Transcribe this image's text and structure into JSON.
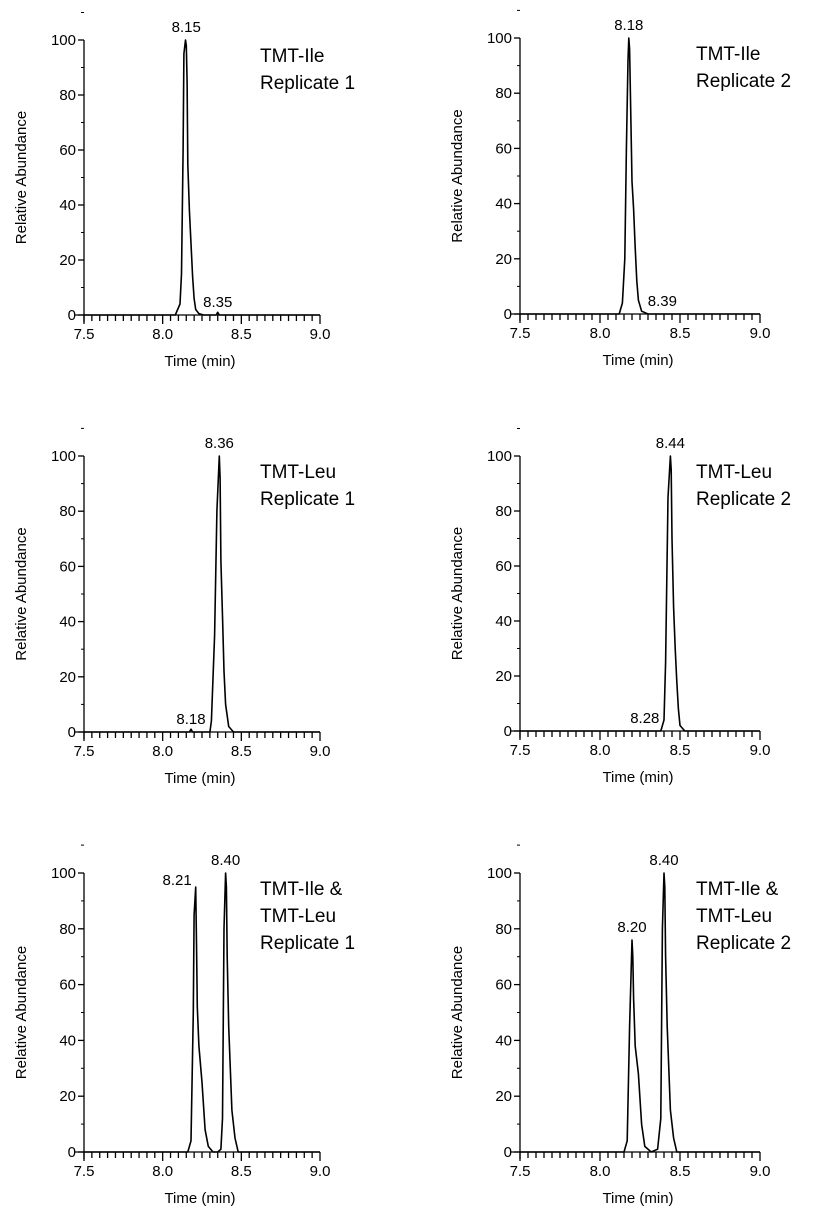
{
  "chart_data": [
    {
      "type": "line",
      "title": "",
      "subtitle": "",
      "annotation_lines": [
        "TMT-Ile",
        "Replicate 1"
      ],
      "xlabel": "Time (min)",
      "ylabel": "Relative Abundance",
      "xlim": [
        7.5,
        9.0
      ],
      "ylim": [
        0,
        100
      ],
      "xticks": [
        "7.5",
        "8.0",
        "8.5",
        "9.0"
      ],
      "yticks": [
        "0",
        "20",
        "40",
        "60",
        "80",
        "100"
      ],
      "grid": false,
      "legend": "none",
      "peak_labels": [
        {
          "text": "8.15",
          "x": 8.15,
          "y": 100
        },
        {
          "text": "8.35",
          "x": 8.35,
          "y": 1
        }
      ],
      "series": [
        {
          "color": "#000000",
          "x": [
            7.5,
            8.08,
            8.11,
            8.12,
            8.13,
            8.135,
            8.145,
            8.15,
            8.155,
            8.16,
            8.17,
            8.18,
            8.19,
            8.2,
            8.21,
            8.23,
            8.26,
            8.3,
            8.34,
            8.35,
            8.36,
            9.0
          ],
          "y": [
            0,
            0,
            4,
            15,
            60,
            95,
            100,
            98,
            85,
            55,
            38,
            26,
            14,
            6,
            2,
            0.5,
            0,
            0,
            0,
            1,
            0,
            0
          ]
        }
      ]
    },
    {
      "type": "line",
      "title": "",
      "subtitle": "",
      "annotation_lines": [
        "TMT-Ile",
        "Replicate 2"
      ],
      "xlabel": "Time (min)",
      "ylabel": "Relative Abundance",
      "xlim": [
        7.5,
        9.0
      ],
      "ylim": [
        0,
        100
      ],
      "xticks": [
        "7.5",
        "8.0",
        "8.5",
        "9.0"
      ],
      "yticks": [
        "0",
        "20",
        "40",
        "60",
        "80",
        "100"
      ],
      "grid": false,
      "legend": "none",
      "peak_labels": [
        {
          "text": "8.18",
          "x": 8.18,
          "y": 100
        },
        {
          "text": "8.39",
          "x": 8.39,
          "y": 1
        }
      ],
      "series": [
        {
          "color": "#000000",
          "x": [
            7.5,
            8.12,
            8.14,
            8.155,
            8.165,
            8.175,
            8.18,
            8.185,
            8.19,
            8.2,
            8.21,
            8.22,
            8.23,
            8.24,
            8.26,
            8.3,
            8.39,
            9.0
          ],
          "y": [
            0,
            0,
            4,
            20,
            60,
            92,
            100,
            96,
            80,
            48,
            38,
            24,
            12,
            5,
            1,
            0,
            0,
            0
          ]
        }
      ]
    },
    {
      "type": "line",
      "title": "",
      "subtitle": "",
      "annotation_lines": [
        "TMT-Leu",
        "Replicate 1"
      ],
      "xlabel": "Time (min)",
      "ylabel": "Relative Abundance",
      "xlim": [
        7.5,
        9.0
      ],
      "ylim": [
        0,
        100
      ],
      "xticks": [
        "7.5",
        "8.0",
        "8.5",
        "9.0"
      ],
      "yticks": [
        "0",
        "20",
        "40",
        "60",
        "80",
        "100"
      ],
      "grid": false,
      "legend": "none",
      "peak_labels": [
        {
          "text": "8.18",
          "x": 8.18,
          "y": 1
        },
        {
          "text": "8.36",
          "x": 8.36,
          "y": 100
        }
      ],
      "series": [
        {
          "color": "#000000",
          "x": [
            7.5,
            8.17,
            8.18,
            8.19,
            8.3,
            8.31,
            8.33,
            8.345,
            8.36,
            8.365,
            8.37,
            8.38,
            8.39,
            8.4,
            8.42,
            8.45,
            9.0
          ],
          "y": [
            0,
            0,
            1,
            0,
            0,
            4,
            35,
            80,
            100,
            92,
            62,
            42,
            22,
            10,
            2,
            0,
            0
          ]
        }
      ]
    },
    {
      "type": "line",
      "title": "",
      "subtitle": "",
      "annotation_lines": [
        "TMT-Leu",
        "Replicate 2"
      ],
      "xlabel": "Time (min)",
      "ylabel": "Relative Abundance",
      "xlim": [
        7.5,
        9.0
      ],
      "ylim": [
        0,
        100
      ],
      "xticks": [
        "7.5",
        "8.0",
        "8.5",
        "9.0"
      ],
      "yticks": [
        "0",
        "20",
        "40",
        "60",
        "80",
        "100"
      ],
      "grid": false,
      "legend": "none",
      "peak_labels": [
        {
          "text": "8.28",
          "x": 8.28,
          "y": 0
        },
        {
          "text": "8.44",
          "x": 8.44,
          "y": 100
        }
      ],
      "series": [
        {
          "color": "#000000",
          "x": [
            7.5,
            8.38,
            8.4,
            8.41,
            8.425,
            8.44,
            8.445,
            8.45,
            8.46,
            8.47,
            8.48,
            8.49,
            8.5,
            8.53,
            9.0
          ],
          "y": [
            0,
            0,
            4,
            25,
            85,
            100,
            95,
            70,
            45,
            30,
            18,
            8,
            2,
            0,
            0
          ]
        }
      ]
    },
    {
      "type": "line",
      "title": "",
      "subtitle": "",
      "annotation_lines": [
        "TMT-Ile &",
        "TMT-Leu",
        "Replicate 1"
      ],
      "xlabel": "Time (min)",
      "ylabel": "Relative Abundance",
      "xlim": [
        7.5,
        9.0
      ],
      "ylim": [
        0,
        100
      ],
      "xticks": [
        "7.5",
        "8.0",
        "8.5",
        "9.0"
      ],
      "yticks": [
        "0",
        "20",
        "40",
        "60",
        "80",
        "100"
      ],
      "grid": false,
      "legend": "none",
      "peak_labels": [
        {
          "text": "8.21",
          "x": 8.21,
          "y": 95
        },
        {
          "text": "8.40",
          "x": 8.4,
          "y": 100
        }
      ],
      "series": [
        {
          "color": "#000000",
          "x": [
            7.5,
            8.16,
            8.18,
            8.195,
            8.2,
            8.21,
            8.215,
            8.22,
            8.23,
            8.25,
            8.27,
            8.29,
            8.32,
            8.35,
            8.37,
            8.38,
            8.39,
            8.4,
            8.405,
            8.41,
            8.42,
            8.44,
            8.46,
            8.48,
            8.52,
            9.0
          ],
          "y": [
            0,
            0,
            4,
            50,
            85,
            95,
            75,
            52,
            38,
            25,
            8,
            2,
            0,
            0,
            1,
            12,
            80,
            100,
            95,
            70,
            45,
            15,
            5,
            0,
            0,
            0
          ]
        }
      ]
    },
    {
      "type": "line",
      "title": "",
      "subtitle": "",
      "annotation_lines": [
        "TMT-Ile &",
        "TMT-Leu",
        "Replicate 2"
      ],
      "xlabel": "Time (min)",
      "ylabel": "Relative Abundance",
      "xlim": [
        7.5,
        9.0
      ],
      "ylim": [
        0,
        100
      ],
      "xticks": [
        "7.5",
        "8.0",
        "8.5",
        "9.0"
      ],
      "yticks": [
        "0",
        "20",
        "40",
        "60",
        "80",
        "100"
      ],
      "grid": false,
      "legend": "none",
      "peak_labels": [
        {
          "text": "8.20",
          "x": 8.2,
          "y": 76
        },
        {
          "text": "8.40",
          "x": 8.4,
          "y": 100
        }
      ],
      "series": [
        {
          "color": "#000000",
          "x": [
            7.5,
            8.15,
            8.17,
            8.185,
            8.2,
            8.205,
            8.21,
            8.22,
            8.24,
            8.26,
            8.28,
            8.32,
            8.36,
            8.38,
            8.39,
            8.4,
            8.405,
            8.41,
            8.42,
            8.44,
            8.46,
            8.48,
            8.52,
            9.0
          ],
          "y": [
            0,
            0,
            4,
            45,
            76,
            70,
            55,
            38,
            28,
            10,
            2,
            0,
            1,
            12,
            80,
            100,
            95,
            70,
            45,
            15,
            5,
            0,
            0,
            0
          ]
        }
      ]
    }
  ]
}
